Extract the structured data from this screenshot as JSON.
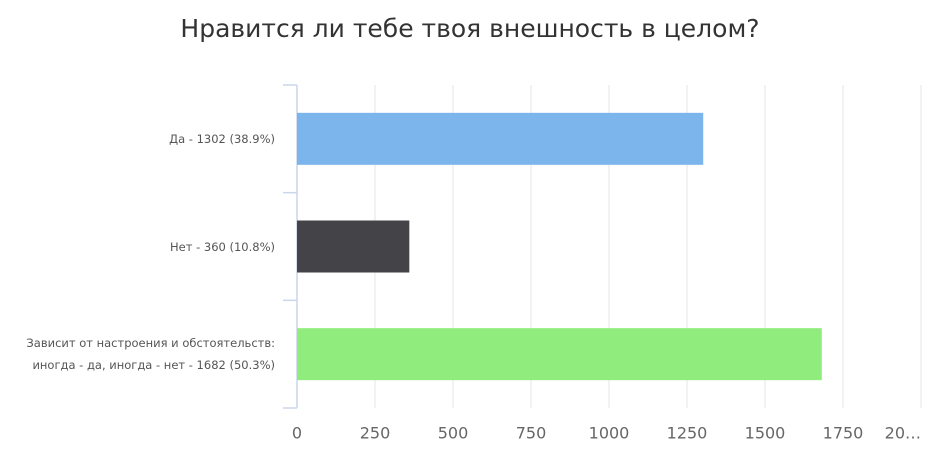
{
  "chart_data": {
    "type": "bar",
    "orientation": "horizontal",
    "title": "Нравится ли тебе твоя внешность в целом?",
    "categories": [
      "Да - 1302 (38.9%)",
      "Нет - 360 (10.8%)",
      "Зависит от настроения и обстоятельств: иногда - да, иногда - нет - 1682 (50.3%)"
    ],
    "values": [
      1302,
      360,
      1682
    ],
    "colors": [
      "#7cb5ec",
      "#434348",
      "#90ed7d"
    ],
    "xlim": [
      0,
      2000
    ],
    "xticks": [
      0,
      250,
      500,
      750,
      1000,
      1250,
      1500,
      1750,
      {
        "value": 2000,
        "label": "20…"
      }
    ],
    "grid": true
  }
}
